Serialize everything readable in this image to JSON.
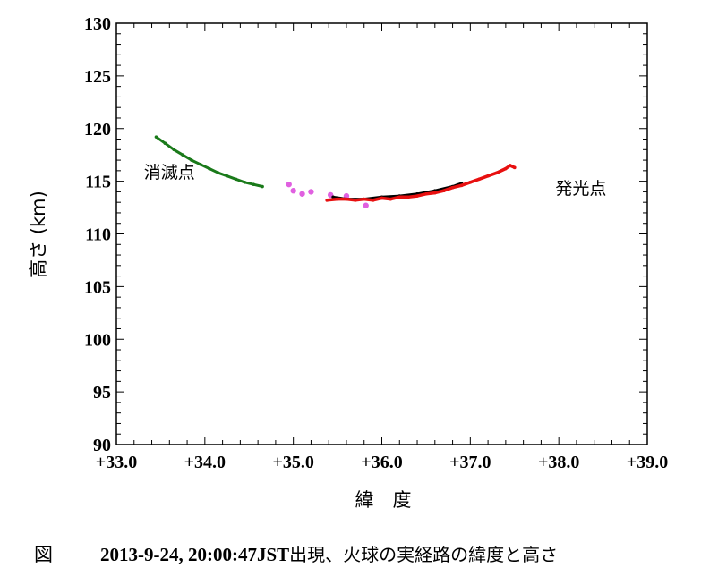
{
  "chart_data": {
    "type": "scatter",
    "xlabel": "緯　度",
    "ylabel": "高さ (km)",
    "xlim": [
      33.0,
      39.0
    ],
    "ylim": [
      90,
      130
    ],
    "x_ticks": [
      33.0,
      34.0,
      35.0,
      36.0,
      37.0,
      38.0,
      39.0
    ],
    "x_tick_labels": [
      "+33.0",
      "+34.0",
      "+35.0",
      "+36.0",
      "+37.0",
      "+38.0",
      "+39.0"
    ],
    "y_ticks": [
      90,
      95,
      100,
      105,
      110,
      115,
      120,
      125,
      130
    ],
    "y_tick_labels": [
      "90",
      "95",
      "100",
      "105",
      "110",
      "115",
      "120",
      "125",
      "130"
    ],
    "series": [
      {
        "name": "green-track",
        "color": "#1a7a1a",
        "x": [
          33.45,
          33.55,
          33.65,
          33.75,
          33.85,
          33.95,
          34.05,
          34.15,
          34.25,
          34.35,
          34.45,
          34.55,
          34.65
        ],
        "y": [
          119.2,
          118.6,
          118.0,
          117.5,
          117.0,
          116.6,
          116.2,
          115.8,
          115.5,
          115.2,
          114.9,
          114.7,
          114.5
        ]
      },
      {
        "name": "magenta-points",
        "color": "#e060e0",
        "x": [
          34.95,
          35.0,
          35.1,
          35.2,
          35.42,
          35.6,
          35.82
        ],
        "y": [
          114.7,
          114.1,
          113.8,
          114.0,
          113.7,
          113.6,
          112.7
        ]
      },
      {
        "name": "black-track",
        "color": "#000000",
        "x": [
          35.45,
          35.6,
          35.8,
          36.0,
          36.2,
          36.4,
          36.6,
          36.8,
          36.9
        ],
        "y": [
          113.5,
          113.3,
          113.3,
          113.5,
          113.6,
          113.8,
          114.1,
          114.5,
          114.8
        ]
      },
      {
        "name": "red-track",
        "color": "#e81010",
        "x": [
          35.38,
          35.5,
          35.6,
          35.7,
          35.8,
          35.9,
          36.0,
          36.1,
          36.2,
          36.3,
          36.4,
          36.5,
          36.6,
          36.7,
          36.8,
          36.9,
          37.0,
          37.1,
          37.2,
          37.3,
          37.4,
          37.45,
          37.5
        ],
        "y": [
          113.2,
          113.3,
          113.3,
          113.2,
          113.3,
          113.2,
          113.4,
          113.3,
          113.5,
          113.5,
          113.6,
          113.8,
          113.9,
          114.1,
          114.4,
          114.6,
          114.9,
          115.2,
          115.5,
          115.8,
          116.2,
          116.5,
          116.3
        ]
      }
    ],
    "annotations": [
      {
        "text": "消滅点",
        "x": 33.6,
        "y": 115.3
      },
      {
        "text": "発光点",
        "x": 38.25,
        "y": 113.8
      }
    ]
  },
  "caption": {
    "figure_label": "図",
    "bold_text": "2013-9-24, 20:00:47JST",
    "jp_text": "出現、火球の実経路の緯度と高さ"
  }
}
